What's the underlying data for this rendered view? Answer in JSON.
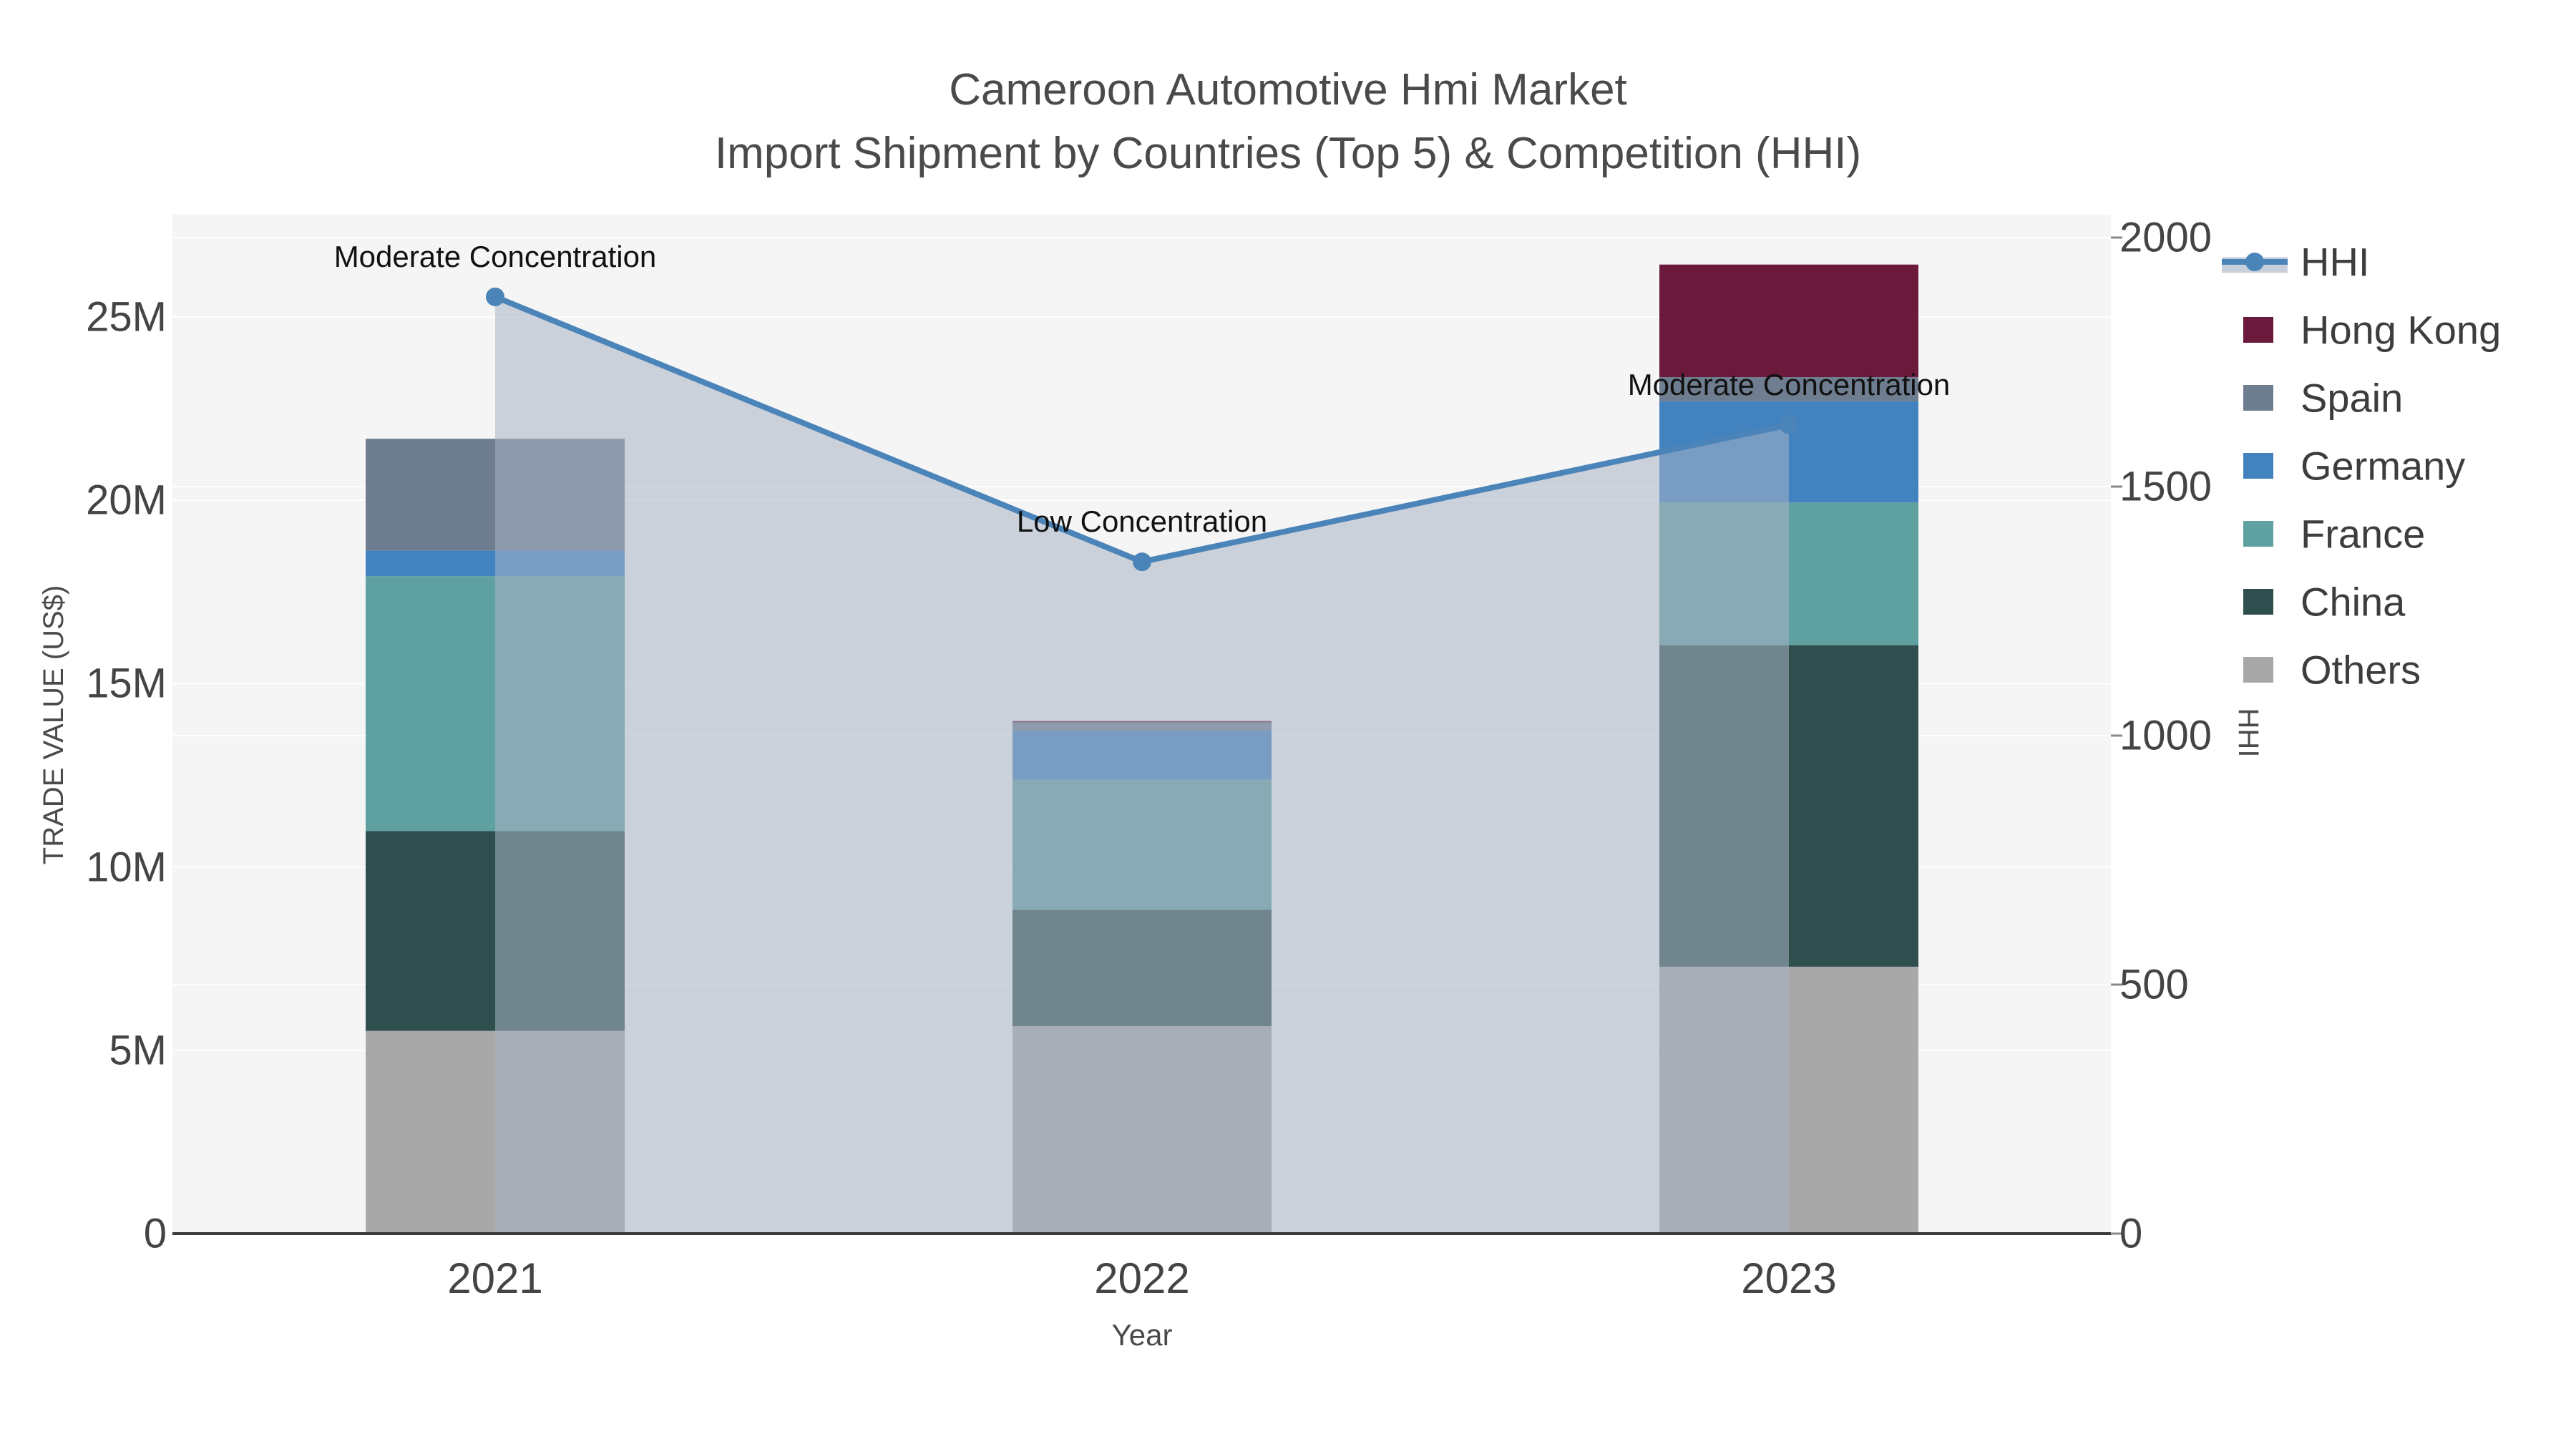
{
  "title": {
    "line1": "Cameroon Automotive Hmi Market",
    "line2": "Import Shipment by Countries (Top 5) & Competition (HHI)"
  },
  "axes": {
    "x": {
      "title": "Year",
      "ticks": [
        "2021",
        "2022",
        "2023"
      ]
    },
    "y_left": {
      "title": "TRADE VALUE (US$)",
      "ticks": [
        "0",
        "5M",
        "10M",
        "15M",
        "20M",
        "25M"
      ],
      "tick_values_musd": [
        0,
        5,
        10,
        15,
        20,
        25
      ]
    },
    "y_right": {
      "title": "HHI",
      "ticks": [
        "0",
        "500",
        "1000",
        "1500",
        "2000"
      ],
      "tick_values": [
        0,
        500,
        1000,
        1500,
        2000
      ]
    }
  },
  "legend": [
    {
      "label": "HHI",
      "type": "line",
      "color": "#4a84b8",
      "band": "#c9cfda"
    },
    {
      "label": "Hong Kong",
      "type": "box",
      "color": "#6b1a3c"
    },
    {
      "label": "Spain",
      "type": "box",
      "color": "#6e7e90"
    },
    {
      "label": "Germany",
      "type": "box",
      "color": "#4282be"
    },
    {
      "label": "France",
      "type": "box",
      "color": "#5fa0a1"
    },
    {
      "label": "China",
      "type": "box",
      "color": "#2e4f4d"
    },
    {
      "label": "Others",
      "type": "box",
      "color": "#a8a8a8"
    }
  ],
  "annotations": [
    {
      "text": "Moderate Concentration",
      "year": "2021"
    },
    {
      "text": "Low Concentration",
      "year": "2022"
    },
    {
      "text": "Moderate Concentration",
      "year": "2023"
    }
  ],
  "chart_data": {
    "type": "bar+line",
    "categories": [
      "2021",
      "2022",
      "2023"
    ],
    "bar_value_unit": "million US$",
    "stack_bottom_to_top": [
      "Others",
      "China",
      "France",
      "Germany",
      "Spain",
      "Hong Kong"
    ],
    "series": [
      {
        "name": "Others",
        "color": "#a8a8a8",
        "values": [
          5.53,
          5.66,
          7.28
        ]
      },
      {
        "name": "China",
        "color": "#2e4f4d",
        "values": [
          5.45,
          3.17,
          8.77
        ]
      },
      {
        "name": "France",
        "color": "#5fa0a1",
        "values": [
          6.95,
          3.55,
          3.89
        ]
      },
      {
        "name": "Germany",
        "color": "#4282be",
        "values": [
          0.7,
          1.33,
          2.76
        ]
      },
      {
        "name": "Spain",
        "color": "#6e7e90",
        "values": [
          3.05,
          0.23,
          0.66
        ]
      },
      {
        "name": "Hong Kong",
        "color": "#6b1a3c",
        "values": [
          0.0,
          0.04,
          3.07
        ]
      }
    ],
    "bar_totals_musd": [
      21.68,
      13.98,
      26.43
    ],
    "line_series": {
      "name": "HHI",
      "color": "#4a84b8",
      "values": [
        1881,
        1349,
        1624
      ],
      "area_fill": "rgba(168,178,196,0.55)",
      "axis": "right"
    },
    "y_left_axis": {
      "label": "TRADE VALUE (US$)",
      "range_musd": [
        0,
        27.8
      ],
      "gridlines_musd": [
        5,
        10,
        15,
        20,
        25
      ]
    },
    "y_right_axis": {
      "label": "HHI",
      "range": [
        0,
        2050
      ],
      "gridlines": [
        500,
        1000,
        1500,
        2000
      ]
    },
    "x_axis": {
      "label": "Year"
    },
    "legend_position": "right",
    "grid_on": true
  },
  "colors": {
    "plot_bg": "#f5f5f5",
    "grid": "#ffffff",
    "axis_line": "#3a3a3a",
    "tick_text": "#444444",
    "title_text": "#4a4a4a",
    "annotation_text": "#111111"
  }
}
